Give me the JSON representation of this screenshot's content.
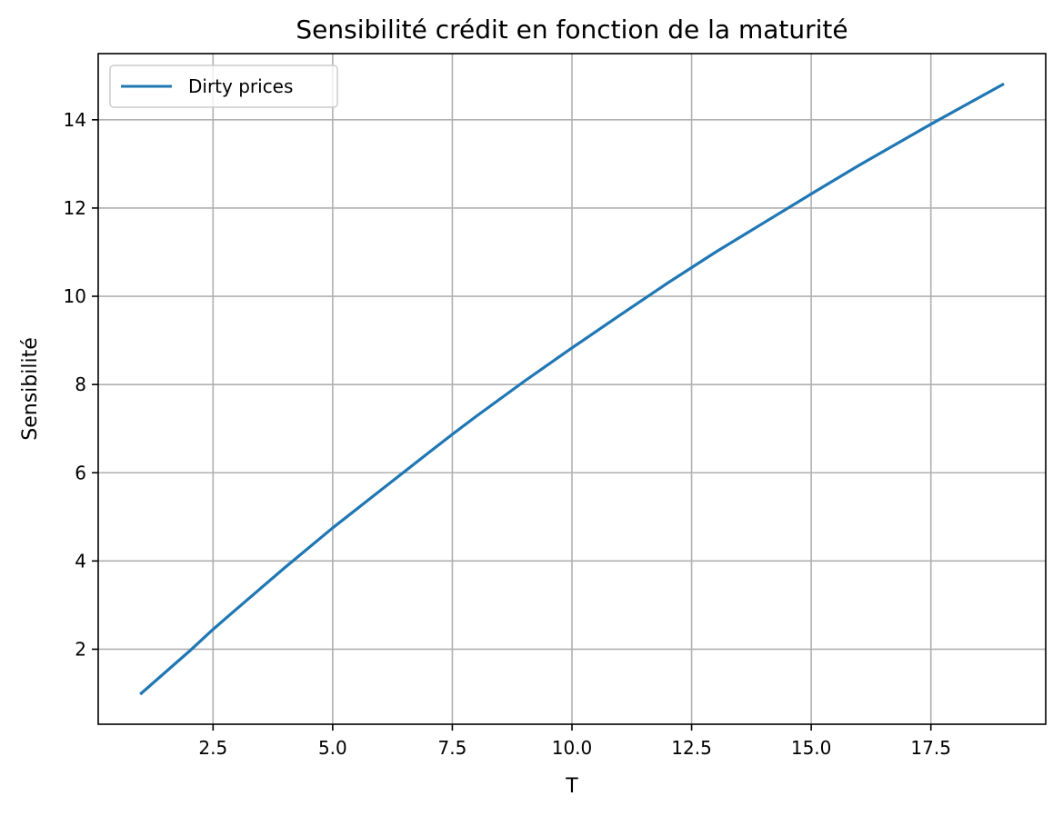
{
  "chart_data": {
    "type": "line",
    "title": "Sensibilité crédit en fonction de la maturité",
    "xlabel": "T",
    "ylabel": "Sensibilité",
    "xlim": [
      0.1,
      19.9
    ],
    "ylim": [
      0.3,
      15.5
    ],
    "xticks": [
      2.5,
      5.0,
      7.5,
      10.0,
      12.5,
      15.0,
      17.5
    ],
    "xtick_labels": [
      "2.5",
      "5.0",
      "7.5",
      "10.0",
      "12.5",
      "15.0",
      "17.5"
    ],
    "yticks": [
      2,
      4,
      6,
      8,
      10,
      12,
      14
    ],
    "ytick_labels": [
      "2",
      "4",
      "6",
      "8",
      "10",
      "12",
      "14"
    ],
    "grid": true,
    "legend_position": "top-left",
    "series": [
      {
        "name": "Dirty prices",
        "color": "#1f77b4",
        "x": [
          1,
          2,
          2.5,
          3,
          4,
          5,
          6,
          7,
          7.5,
          8,
          9,
          10,
          11,
          12,
          12.5,
          13,
          14,
          15,
          16,
          17,
          17.5,
          18,
          19
        ],
        "y": [
          1.0,
          1.95,
          2.45,
          2.92,
          3.85,
          4.75,
          5.6,
          6.45,
          6.87,
          7.28,
          8.07,
          8.83,
          9.57,
          10.3,
          10.65,
          11.0,
          11.66,
          12.32,
          12.97,
          13.59,
          13.9,
          14.2,
          14.8
        ]
      }
    ]
  }
}
